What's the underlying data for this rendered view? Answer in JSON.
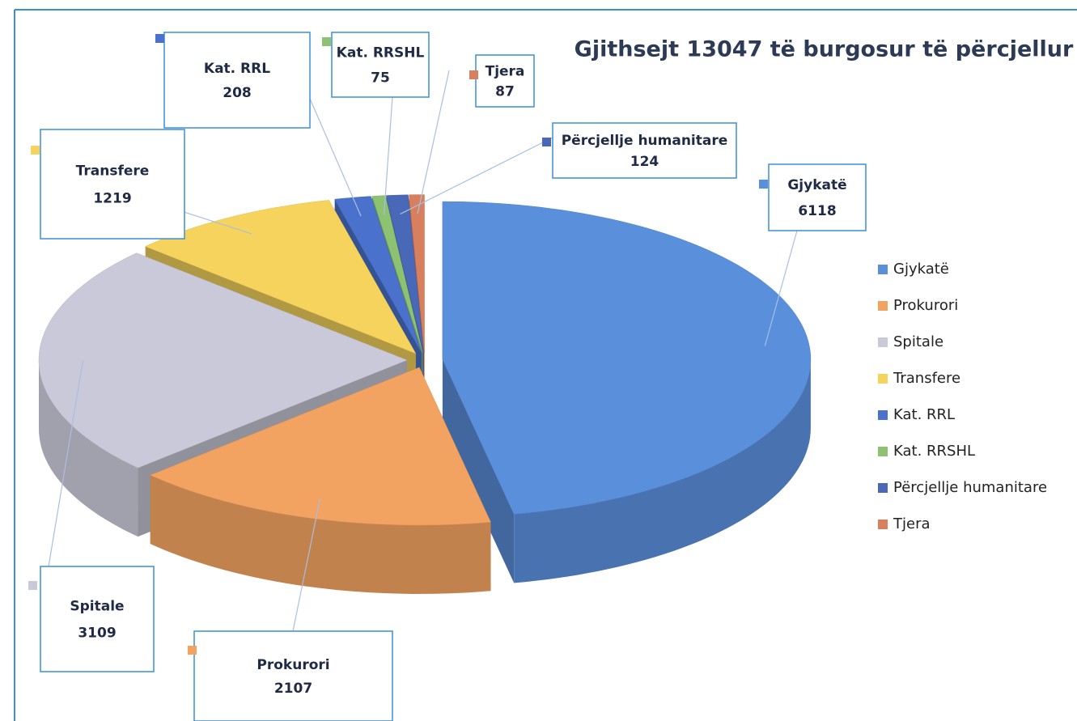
{
  "chart_data": {
    "type": "pie3d",
    "title": "Gjithsejt 13047 të burgosur të përcjellur",
    "categories": [
      "Gjykatë",
      "Prokurori",
      "Spitale",
      "Transfere",
      "Kat. RRL",
      "Kat. RRSHL",
      "Përcjellje humanitare",
      "Tjera"
    ],
    "values": [
      6118,
      2107,
      3109,
      1219,
      208,
      75,
      124,
      87
    ],
    "colors": [
      "#5a8fdc",
      "#f2a261",
      "#c9c9d9",
      "#f6d35c",
      "#4a72cc",
      "#8cc272",
      "#4a68b8",
      "#d8805e"
    ],
    "legend": "right"
  }
}
